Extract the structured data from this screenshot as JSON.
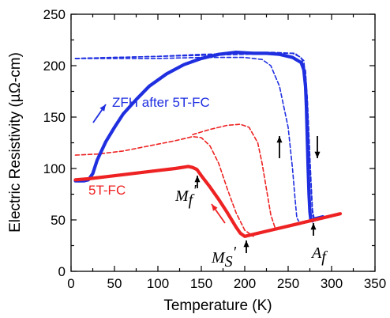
{
  "chart_data": {
    "type": "line",
    "xlabel": "Temperature (K)",
    "ylabel": "Electric Resistivity (µΩ-cm)",
    "xlim": [
      0,
      350
    ],
    "ylim": [
      0,
      250
    ],
    "xticks": [
      0,
      50,
      100,
      150,
      200,
      250,
      300,
      350
    ],
    "yticks": [
      0,
      50,
      100,
      150,
      200,
      250
    ],
    "grid": false,
    "colors": {
      "blue": "#1f2fe0",
      "red": "#ee2222",
      "arrow": "#000000"
    },
    "series": [
      {
        "name": "ZFH after 5T-FC",
        "color": "#1f2fe0",
        "style": "solid",
        "x": [
          5,
          15,
          20,
          25,
          30,
          40,
          50,
          60,
          75,
          90,
          110,
          130,
          150,
          170,
          190,
          210,
          225,
          240,
          255,
          265,
          268,
          270,
          271,
          272,
          273,
          274,
          275,
          276,
          278,
          280,
          285,
          290
        ],
        "y": [
          88,
          88,
          89,
          95,
          108,
          126,
          140,
          153,
          167,
          180,
          192,
          201,
          207,
          211,
          213,
          212,
          212,
          211,
          208,
          203,
          196,
          180,
          160,
          130,
          100,
          75,
          58,
          51,
          49,
          51,
          52,
          53
        ]
      },
      {
        "name": "5T-FC",
        "color": "#ee2222",
        "style": "solid",
        "x": [
          5,
          20,
          40,
          60,
          80,
          100,
          120,
          135,
          140,
          145,
          150,
          160,
          170,
          180,
          185,
          190,
          195,
          200,
          210,
          230,
          250,
          270,
          290,
          310
        ],
        "y": [
          89,
          90,
          92,
          94,
          96,
          98,
          100,
          102,
          101,
          99,
          93,
          82,
          70,
          57,
          50,
          43,
          37,
          34,
          36,
          40,
          44,
          48,
          52,
          56
        ]
      },
      {
        "name": "",
        "color": "#1f2fe0",
        "style": "dashed",
        "x": [
          5,
          50,
          100,
          150,
          200,
          220,
          230,
          240,
          250,
          255,
          258,
          260,
          262
        ],
        "y": [
          207,
          207,
          207,
          208,
          208,
          206,
          200,
          180,
          140,
          100,
          70,
          52,
          49
        ]
      },
      {
        "name": "",
        "color": "#1f2fe0",
        "style": "dashed",
        "x": [
          5,
          50,
          100,
          150,
          200,
          230,
          255,
          265,
          270,
          273,
          276,
          278,
          280
        ],
        "y": [
          207,
          208,
          209,
          210,
          211,
          212,
          212,
          208,
          195,
          150,
          90,
          55,
          50
        ]
      },
      {
        "name": "",
        "color": "#1f2fe0",
        "style": "dashed",
        "x": [
          5,
          50,
          100,
          150,
          200,
          230,
          258,
          268,
          272,
          275,
          278,
          280
        ],
        "y": [
          207,
          208,
          209,
          211,
          212,
          213,
          212,
          205,
          170,
          110,
          60,
          51
        ]
      },
      {
        "name": "",
        "color": "#ee2222",
        "style": "dashed",
        "x": [
          5,
          30,
          60,
          90,
          120,
          140,
          150,
          160,
          170,
          180,
          190,
          200,
          210
        ],
        "y": [
          113,
          114,
          117,
          122,
          127,
          131,
          130,
          122,
          105,
          80,
          57,
          40,
          34
        ]
      },
      {
        "name": "",
        "color": "#ee2222",
        "style": "dashed",
        "x": [
          140,
          160,
          180,
          195,
          205,
          215,
          220,
          225,
          230,
          235
        ],
        "y": [
          133,
          138,
          142,
          143,
          140,
          125,
          105,
          80,
          55,
          42
        ]
      }
    ],
    "annotations": {
      "label_zfh": "ZFH after 5T-FC",
      "label_fc": "5T-FC",
      "label_mf": "M",
      "label_mf_sub": "f",
      "label_mf_prime": "'",
      "label_ms": "M",
      "label_ms_sub": "S",
      "label_ms_prime": "'",
      "label_af": "A",
      "label_af_sub": "f"
    }
  }
}
